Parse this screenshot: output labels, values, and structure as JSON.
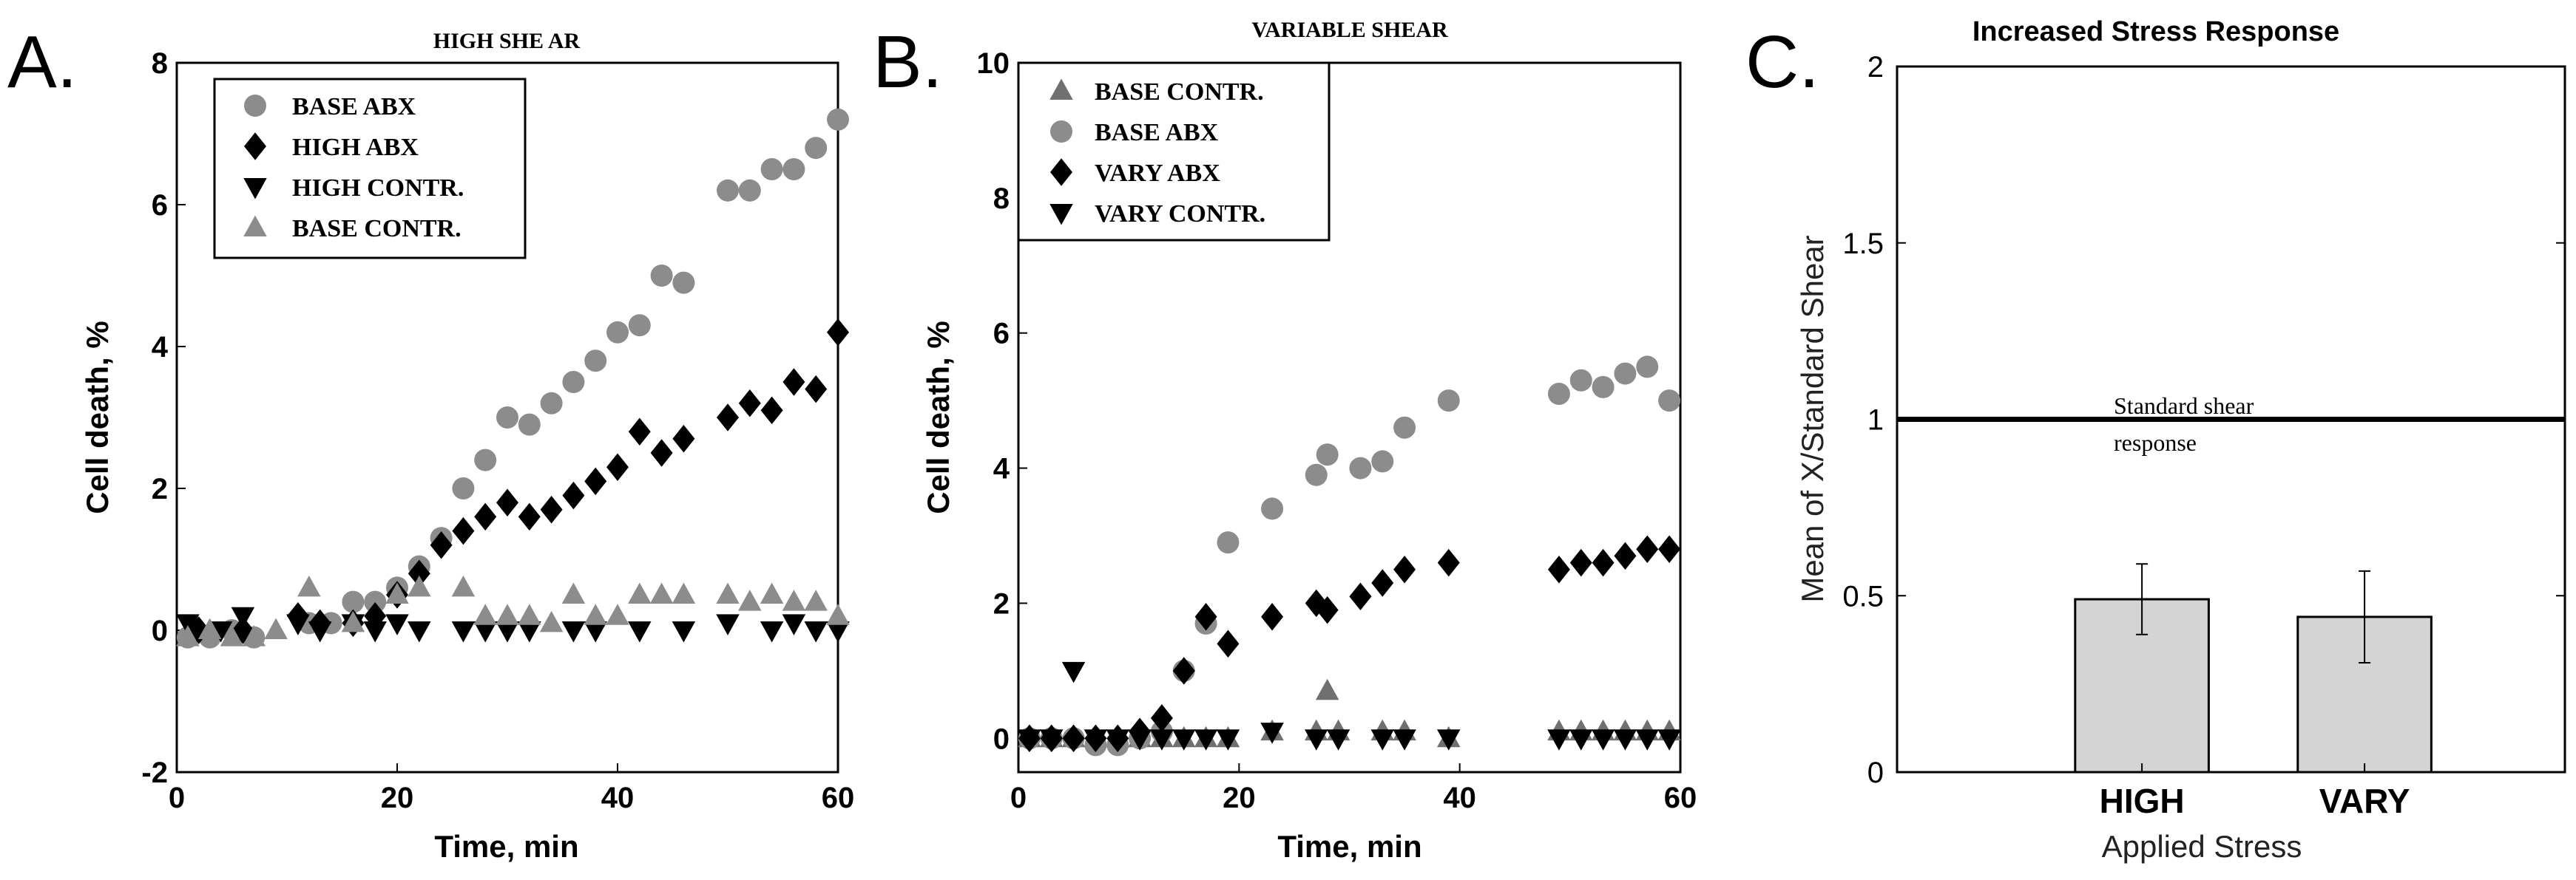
{
  "chart_data": [
    {
      "panel": "A.",
      "type": "scatter",
      "title": "HIGH SHE AR",
      "xlabel": "Time, min",
      "ylabel": "Cell death, %",
      "xlim": [
        0,
        60
      ],
      "ylim": [
        -2,
        8
      ],
      "xticks": [
        0,
        20,
        40,
        60
      ],
      "yticks": [
        -2,
        0,
        2,
        4,
        6,
        8
      ],
      "legend": "top-left",
      "series": [
        {
          "name": "BASE ABX",
          "marker": "circle",
          "color": "#8c8c8c",
          "x": [
            1,
            3,
            5,
            7,
            12,
            14,
            16,
            18,
            20,
            22,
            24,
            26,
            28,
            30,
            32,
            34,
            36,
            38,
            40,
            42,
            44,
            46,
            50,
            52,
            54,
            56,
            58,
            60
          ],
          "y": [
            -0.1,
            -0.1,
            0,
            -0.1,
            0.1,
            0.1,
            0.4,
            0.4,
            0.6,
            0.9,
            1.3,
            2.0,
            2.4,
            3.0,
            2.9,
            3.2,
            3.5,
            3.8,
            4.2,
            4.3,
            5.0,
            4.9,
            6.2,
            6.2,
            6.5,
            6.5,
            6.8,
            7.2
          ]
        },
        {
          "name": "HIGH ABX",
          "marker": "diamond",
          "color": "#000000",
          "x": [
            2,
            6,
            11,
            13,
            16,
            18,
            20,
            22,
            24,
            26,
            28,
            30,
            32,
            34,
            36,
            38,
            40,
            42,
            44,
            46,
            50,
            52,
            54,
            56,
            58,
            60
          ],
          "y": [
            0,
            0,
            0.2,
            0.1,
            0.1,
            0.2,
            0.5,
            0.8,
            1.2,
            1.4,
            1.6,
            1.8,
            1.6,
            1.7,
            1.9,
            2.1,
            2.3,
            2.8,
            2.5,
            2.7,
            3.0,
            3.2,
            3.1,
            3.5,
            3.4,
            4.2
          ]
        },
        {
          "name": "HIGH CONTR.",
          "marker": "triangle-down",
          "color": "#000000",
          "x": [
            1,
            4,
            6,
            11,
            13,
            16,
            18,
            20,
            22,
            26,
            28,
            30,
            32,
            36,
            38,
            42,
            46,
            50,
            54,
            56,
            58,
            60
          ],
          "y": [
            0.1,
            0,
            0.2,
            0.1,
            0,
            0.1,
            0,
            0.1,
            0,
            0,
            0,
            0,
            0,
            0,
            0,
            0,
            0,
            0.1,
            0,
            0.1,
            0,
            0
          ],
          "y_note": "values clustered near zero"
        },
        {
          "name": "BASE CONTR.",
          "marker": "triangle-up",
          "color": "#8c8c8c",
          "x": [
            1,
            3,
            5,
            7,
            9,
            12,
            16,
            20,
            22,
            26,
            28,
            30,
            32,
            34,
            36,
            38,
            40,
            42,
            44,
            46,
            50,
            52,
            54,
            56,
            58,
            60
          ],
          "y": [
            -0.1,
            0,
            -0.1,
            -0.1,
            0,
            0.6,
            0.1,
            0.5,
            0.6,
            0.6,
            0.2,
            0.2,
            0.2,
            0.1,
            0.5,
            0.2,
            0.2,
            0.5,
            0.5,
            0.5,
            0.5,
            0.4,
            0.5,
            0.4,
            0.4,
            0.2
          ]
        }
      ]
    },
    {
      "panel": "B.",
      "type": "scatter",
      "title": "VARIABLE SHEAR",
      "xlabel": "Time, min",
      "ylabel": "Cell death, %",
      "xlim": [
        0,
        60
      ],
      "ylim": [
        -0.5,
        10
      ],
      "xticks": [
        0,
        20,
        40,
        60
      ],
      "yticks": [
        0,
        2,
        4,
        6,
        8,
        10
      ],
      "legend": "top-left",
      "series": [
        {
          "name": "BASE CONTR.",
          "marker": "triangle-up",
          "color": "#707070",
          "x": [
            1,
            3,
            5,
            7,
            9,
            11,
            13,
            15,
            17,
            19,
            23,
            27,
            28,
            29,
            33,
            35,
            39,
            49,
            51,
            53,
            55,
            57,
            59
          ],
          "y": [
            0,
            0,
            0,
            0,
            0,
            0,
            0,
            0,
            0,
            0,
            0.1,
            0.1,
            0.7,
            0.1,
            0.1,
            0.1,
            0,
            0.1,
            0.1,
            0.1,
            0.1,
            0.1,
            0.1
          ]
        },
        {
          "name": "BASE ABX",
          "marker": "circle",
          "color": "#8c8c8c",
          "x": [
            1,
            3,
            5,
            7,
            9,
            11,
            13,
            15,
            17,
            19,
            23,
            27,
            28,
            31,
            33,
            35,
            39,
            49,
            51,
            53,
            55,
            57,
            59
          ],
          "y": [
            0,
            0,
            0,
            -0.1,
            -0.1,
            0,
            0.1,
            1.0,
            1.7,
            2.9,
            3.4,
            3.9,
            4.2,
            4.0,
            4.1,
            4.6,
            5.0,
            5.1,
            5.3,
            5.2,
            5.4,
            5.5,
            5.0
          ]
        },
        {
          "name": "VARY ABX",
          "marker": "diamond",
          "color": "#000000",
          "x": [
            1,
            3,
            5,
            7,
            9,
            11,
            13,
            15,
            17,
            19,
            23,
            27,
            28,
            31,
            33,
            35,
            39,
            49,
            51,
            53,
            55,
            57,
            59
          ],
          "y": [
            0,
            0,
            0,
            0,
            0,
            0.1,
            0.3,
            1.0,
            1.8,
            1.4,
            1.8,
            2.0,
            1.9,
            2.1,
            2.3,
            2.5,
            2.6,
            2.5,
            2.6,
            2.6,
            2.7,
            2.8,
            2.8
          ]
        },
        {
          "name": "VARY CONTR.",
          "marker": "triangle-down",
          "color": "#000000",
          "x": [
            1,
            3,
            5,
            7,
            9,
            11,
            13,
            15,
            17,
            19,
            23,
            27,
            29,
            33,
            35,
            39,
            49,
            51,
            53,
            55,
            57,
            59
          ],
          "y": [
            0,
            0,
            1.0,
            0,
            0,
            0,
            0,
            0,
            0,
            0,
            0.1,
            0,
            0,
            0,
            0,
            0,
            0,
            0,
            0,
            0,
            0,
            0
          ]
        }
      ]
    },
    {
      "panel": "C.",
      "type": "bar",
      "title": "Increased Stress Response",
      "xlabel": "Applied Stress",
      "ylabel": "Mean of X/Standard Shear",
      "ylim": [
        0,
        2
      ],
      "yticks": [
        0,
        0.5,
        1,
        1.5,
        2
      ],
      "categories": [
        "HIGH",
        "VARY"
      ],
      "values": [
        0.49,
        0.44
      ],
      "errors": [
        0.1,
        0.13
      ],
      "bar_color": "#d4d4d4",
      "reference_line": {
        "y": 1,
        "label_line1": "Standard shear",
        "label_line2": "response"
      }
    }
  ]
}
